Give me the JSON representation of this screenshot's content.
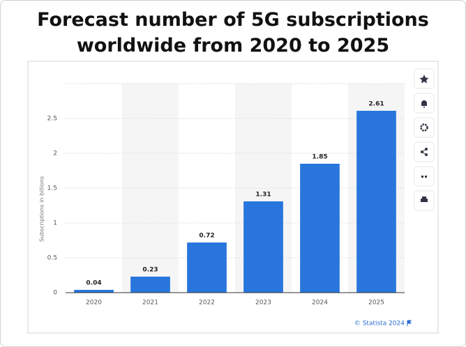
{
  "chart_data": {
    "type": "bar",
    "title": "Forecast number of 5G subscriptions worldwide from 2020 to 2025",
    "y_label": "Subscriptions in billions",
    "categories": [
      "2020",
      "2021",
      "2022",
      "2023",
      "2024",
      "2025"
    ],
    "values": [
      0.04,
      0.23,
      0.72,
      1.31,
      1.85,
      2.61
    ],
    "color": "#2876dd",
    "ylim": [
      0,
      3
    ],
    "yticks": [
      0,
      0.5,
      1,
      1.5,
      2,
      2.5
    ],
    "grid": true,
    "source": "© Statista 2024"
  }
}
